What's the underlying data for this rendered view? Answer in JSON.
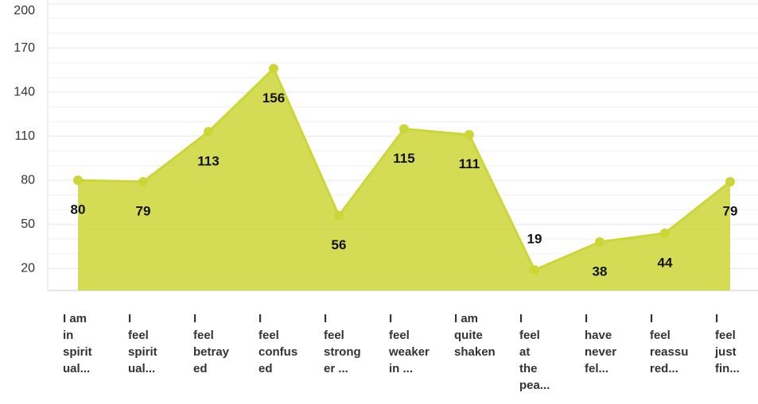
{
  "chart_data": {
    "type": "area",
    "categories": [
      "I am\nin\nspirit\nual...",
      "I\nfeel\nspirit\nual...",
      "I\nfeel\nbetray\ned",
      "I\nfeel\nconfus\ned",
      "I\nfeel\nstrong\ner ...",
      "I\nfeel\nweaker\nin ...",
      "I am\nquite\nshaken",
      "I\nfeel\nat\nthe\npea...",
      "I\nhave\nnever\nfel...",
      "I\nfeel\nreassu\nred...",
      "I\nfeel\njust\nfin..."
    ],
    "values": [
      80,
      79,
      113,
      156,
      56,
      115,
      111,
      19,
      38,
      44,
      79
    ],
    "color": "#cdd637",
    "ylim": [
      5,
      200
    ],
    "yticks": [
      20,
      50,
      80,
      110,
      140,
      170,
      200
    ],
    "grid": true
  }
}
